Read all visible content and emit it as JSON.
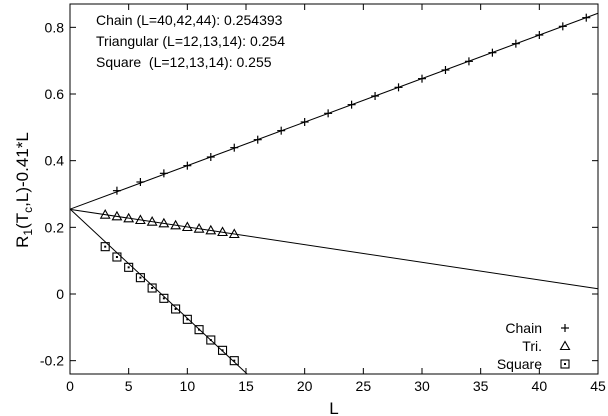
{
  "chart_data": {
    "type": "scatter",
    "title": "",
    "xlabel": "L",
    "ylabel_parts": [
      "R",
      "1",
      "(T",
      "c",
      ",L)-0.41*L"
    ],
    "xlim": [
      0,
      45
    ],
    "ylim": [
      -0.24,
      0.87
    ],
    "xticks": [
      0,
      5,
      10,
      15,
      20,
      25,
      30,
      35,
      40,
      45
    ],
    "yticks": [
      -0.2,
      0,
      0.2,
      0.4,
      0.6,
      0.8
    ],
    "xtick_labels": [
      "0",
      "5",
      "10",
      "15",
      "20",
      "25",
      "30",
      "35",
      "40",
      "45"
    ],
    "ytick_labels": [
      "-0.2",
      "0",
      "0.2",
      "0.4",
      "0.6",
      "0.8"
    ],
    "grid": false,
    "legend_position": "bottom-right",
    "annotations": [
      "Chain (L=40,42,44): 0.254393",
      "Triangular (L=12,13,14): 0.254",
      "Square  (L=12,13,14): 0.255"
    ],
    "fit_lines": [
      {
        "x": [
          0,
          45
        ],
        "y": [
          0.2544,
          0.8422
        ]
      },
      {
        "x": [
          0,
          45
        ],
        "y": [
          0.254,
          0.0156
        ]
      },
      {
        "x": [
          0,
          15.1
        ],
        "y": [
          0.255,
          -0.24
        ]
      }
    ],
    "series": [
      {
        "name": "Chain",
        "marker": "plus",
        "x": [
          4,
          6,
          8,
          10,
          12,
          14,
          16,
          18,
          20,
          22,
          24,
          26,
          28,
          30,
          32,
          34,
          36,
          38,
          40,
          42,
          44
        ],
        "y": [
          0.31,
          0.336,
          0.362,
          0.385,
          0.411,
          0.439,
          0.463,
          0.49,
          0.516,
          0.542,
          0.568,
          0.594,
          0.62,
          0.646,
          0.672,
          0.698,
          0.724,
          0.751,
          0.777,
          0.803,
          0.829
        ]
      },
      {
        "name": "Tri.",
        "marker": "triangle",
        "x": [
          3,
          4,
          5,
          6,
          7,
          8,
          9,
          10,
          11,
          12,
          13,
          14
        ],
        "y": [
          0.238,
          0.233,
          0.227,
          0.222,
          0.217,
          0.212,
          0.206,
          0.201,
          0.196,
          0.191,
          0.186,
          0.18
        ]
      },
      {
        "name": "Square",
        "marker": "square",
        "x": [
          3,
          4,
          5,
          6,
          7,
          8,
          9,
          10,
          11,
          12,
          13,
          14
        ],
        "y": [
          0.142,
          0.111,
          0.08,
          0.049,
          0.018,
          -0.013,
          -0.045,
          -0.076,
          -0.107,
          -0.138,
          -0.169,
          -0.2
        ]
      }
    ]
  }
}
